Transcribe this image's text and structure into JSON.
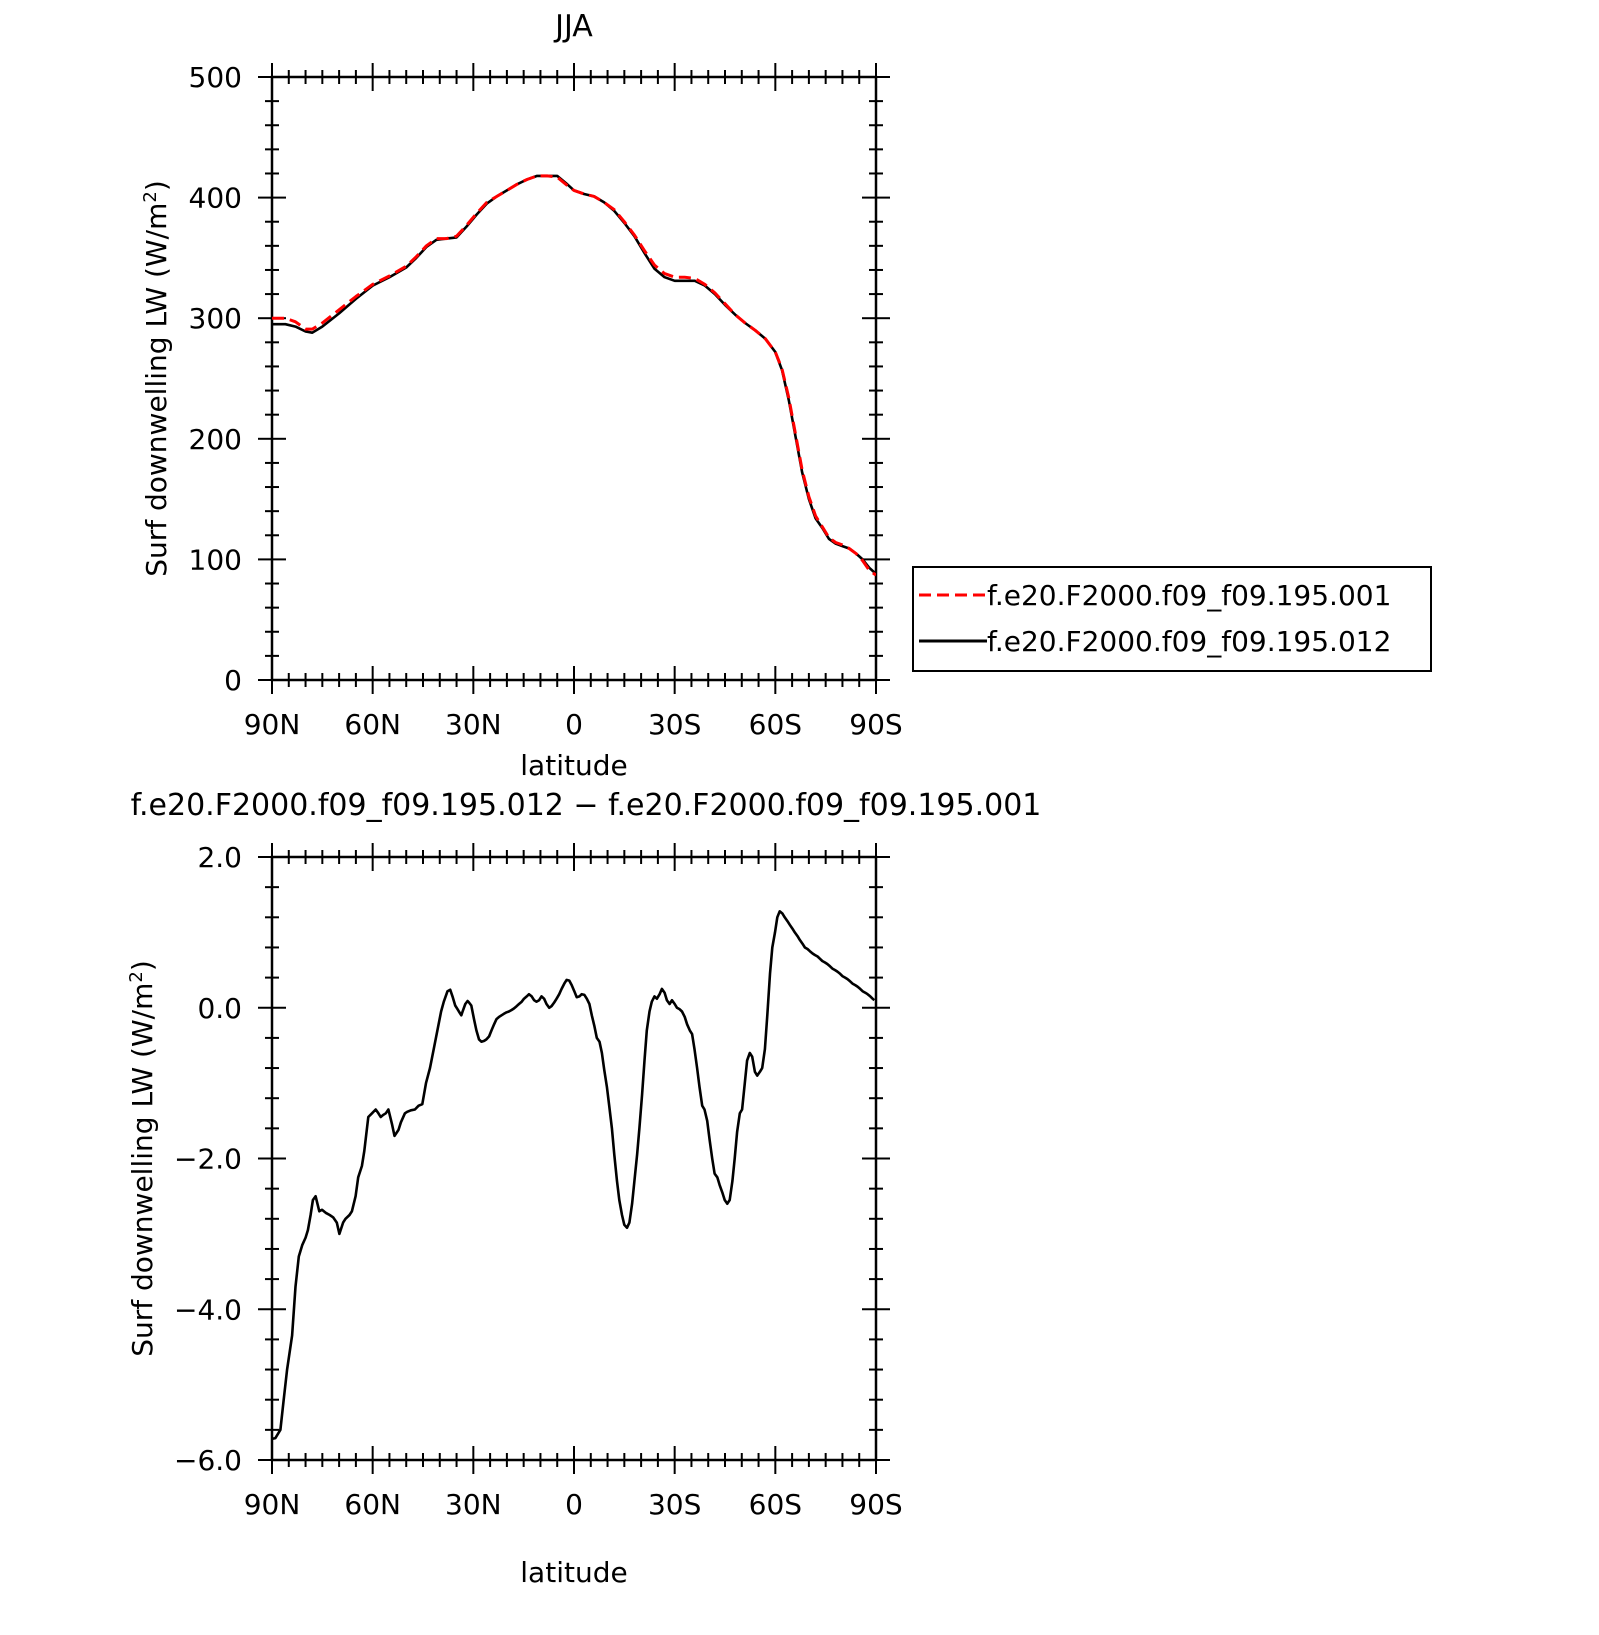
{
  "chart_data": [
    {
      "type": "line",
      "title": "JJA",
      "xlabel": "latitude",
      "ylabel": "Surf downwelling LW (W/m",
      "ylabel_sup": "2",
      "ylabel_close": ")",
      "xlim": [
        90,
        -90
      ],
      "ylim": [
        0,
        500
      ],
      "xticks": [
        {
          "value": 90,
          "label": "90N"
        },
        {
          "value": 60,
          "label": "60N"
        },
        {
          "value": 30,
          "label": "30N"
        },
        {
          "value": 0,
          "label": "0"
        },
        {
          "value": -30,
          "label": "30S"
        },
        {
          "value": -60,
          "label": "60S"
        },
        {
          "value": -90,
          "label": "90S"
        }
      ],
      "yticks": [
        {
          "value": 0,
          "label": "0"
        },
        {
          "value": 100,
          "label": "100"
        },
        {
          "value": 200,
          "label": "200"
        },
        {
          "value": 300,
          "label": "300"
        },
        {
          "value": 400,
          "label": "400"
        },
        {
          "value": 500,
          "label": "500"
        }
      ],
      "grid": false,
      "legend_position": "right",
      "series": [
        {
          "name": "f.e20.F2000.f09_f09.195.001",
          "color": "#ff0000",
          "dash": "dashed",
          "x": [
            90,
            86,
            83,
            80,
            78,
            75,
            70,
            65,
            60,
            55,
            50,
            47,
            44,
            41,
            38,
            35,
            32,
            29,
            26,
            23,
            20,
            17,
            14,
            11,
            8,
            5,
            2,
            0,
            -3,
            -6,
            -9,
            -12,
            -15,
            -18,
            -21,
            -24,
            -27,
            -30,
            -33,
            -36,
            -39,
            -42,
            -45,
            -48,
            -51,
            -54,
            -57,
            -60,
            -62,
            -64,
            -66,
            -68,
            -70,
            -72,
            -74,
            -76,
            -78,
            -80,
            -82,
            -84,
            -86,
            -88,
            -90
          ],
          "y": [
            300,
            300,
            297,
            291,
            291,
            296,
            307,
            318,
            328,
            335,
            343,
            351,
            360,
            366,
            366,
            368,
            377,
            387,
            396,
            401,
            406,
            411,
            415,
            418,
            418,
            417,
            410,
            406,
            403,
            401,
            396,
            390,
            380,
            369,
            356,
            344,
            337,
            334,
            334,
            333,
            328,
            321,
            312,
            303,
            296,
            290,
            283,
            272,
            258,
            234,
            204,
            174,
            152,
            136,
            127,
            118,
            114,
            112,
            109,
            105,
            99,
            91,
            87
          ]
        },
        {
          "name": "f.e20.F2000.f09_f09.195.012",
          "color": "#000000",
          "dash": "solid",
          "x": [
            90,
            86,
            83,
            80,
            78,
            75,
            70,
            65,
            60,
            55,
            50,
            47,
            44,
            41,
            38,
            35,
            32,
            29,
            26,
            23,
            20,
            17,
            14,
            11,
            8,
            5,
            2,
            0,
            -3,
            -6,
            -9,
            -12,
            -15,
            -18,
            -21,
            -24,
            -27,
            -30,
            -33,
            -36,
            -39,
            -42,
            -45,
            -48,
            -51,
            -54,
            -57,
            -60,
            -62,
            -64,
            -66,
            -68,
            -70,
            -72,
            -74,
            -76,
            -78,
            -80,
            -82,
            -84,
            -86,
            -88,
            -90
          ],
          "y": [
            295,
            295,
            293,
            289,
            288,
            293,
            304,
            316,
            327,
            334,
            342,
            350,
            359,
            365,
            366,
            367,
            376,
            386,
            395,
            401,
            406,
            411,
            415,
            418,
            418,
            418,
            411,
            406,
            403,
            401,
            396,
            389,
            379,
            368,
            354,
            341,
            334,
            331,
            331,
            331,
            327,
            320,
            311,
            303,
            296,
            290,
            283,
            272,
            257,
            232,
            202,
            172,
            150,
            134,
            126,
            117,
            113,
            111,
            109,
            105,
            100,
            93,
            88
          ]
        }
      ]
    },
    {
      "type": "line",
      "title": "f.e20.F2000.f09_f09.195.012 − f.e20.F2000.f09_f09.195.001",
      "xlabel": "latitude",
      "ylabel": "Surf downwelling LW (W/m",
      "ylabel_sup": "2",
      "ylabel_close": ")",
      "xlim": [
        90,
        -90
      ],
      "ylim": [
        -6.0,
        2.0
      ],
      "xticks": [
        {
          "value": 90,
          "label": "90N"
        },
        {
          "value": 60,
          "label": "60N"
        },
        {
          "value": 30,
          "label": "30N"
        },
        {
          "value": 0,
          "label": "0"
        },
        {
          "value": -30,
          "label": "30S"
        },
        {
          "value": -60,
          "label": "60S"
        },
        {
          "value": -90,
          "label": "90S"
        }
      ],
      "yticks": [
        {
          "value": -6.0,
          "label": "−6.0"
        },
        {
          "value": -4.0,
          "label": "−4.0"
        },
        {
          "value": -2.0,
          "label": "−2.0"
        },
        {
          "value": 0.0,
          "label": "0.0"
        },
        {
          "value": 2.0,
          "label": "2.0"
        }
      ],
      "grid": false,
      "series": [
        {
          "color": "#000000",
          "dash": "solid",
          "x": [
            90,
            89,
            87.5,
            86.5,
            85.5,
            84,
            83,
            82,
            81,
            80,
            79.3,
            78.5,
            77.8,
            77,
            75.9,
            75.1,
            74,
            72.8,
            71.8,
            70.7,
            69.9,
            68.8,
            68.1,
            66.9,
            66.2,
            65.1,
            64.3,
            63.2,
            62.5,
            61.3,
            60.2,
            59.1,
            58.3,
            57.6,
            56.8,
            56.1,
            55.3,
            54.2,
            53.5,
            52.3,
            51.6,
            50.4,
            49.7,
            48.6,
            47.4,
            46.3,
            45.2,
            44.1,
            42.9,
            41.8,
            40.7,
            39.6,
            38.8,
            37.7,
            36.9,
            36.2,
            35.4,
            34.7,
            34.3,
            33.6,
            33.2,
            32.4,
            31.7,
            31.3,
            30.6,
            29.8,
            29.1,
            28.3,
            27.6,
            26.8,
            26.1,
            25.3,
            24.6,
            23.8,
            23.1,
            22.3,
            21.6,
            20.9,
            20.1,
            19.4,
            18.6,
            17.9,
            17.1,
            16.4,
            15.6,
            14.9,
            14.1,
            13.4,
            12.6,
            11.9,
            11.2,
            10.4,
            9.7,
            8.9,
            8.2,
            7.4,
            6.7,
            5.9,
            5.2,
            4.4,
            3.7,
            2.9,
            2.2,
            1.4,
            0.7,
            -0.1,
            -0.8,
            -1.6,
            -2.3,
            -3.1,
            -3.8,
            -4.6,
            -5.3,
            -6.1,
            -6.8,
            -7.6,
            -8.3,
            -9.0,
            -9.8,
            -10.5,
            -11.3,
            -12.0,
            -12.8,
            -13.5,
            -14.3,
            -15.0,
            -15.8,
            -16.5,
            -17.3,
            -18.0,
            -18.8,
            -19.5,
            -20.3,
            -21.0,
            -21.7,
            -22.5,
            -23.2,
            -24.0,
            -24.7,
            -25.5,
            -26.2,
            -27.0,
            -27.7,
            -28.5,
            -29.2,
            -30.0,
            -30.7,
            -31.5,
            -32.2,
            -33.0,
            -33.7,
            -34.5,
            -35.2,
            -35.9,
            -36.7,
            -37.4,
            -38.2,
            -38.9,
            -39.7,
            -40.4,
            -41.2,
            -41.9,
            -42.7,
            -43.4,
            -44.2,
            -44.9,
            -45.7,
            -46.4,
            -47.2,
            -47.9,
            -48.6,
            -49.4,
            -50.1,
            -50.9,
            -51.6,
            -52.4,
            -53.1,
            -53.9,
            -54.6,
            -55.4,
            -56.1,
            -56.9,
            -57.6,
            -58.4,
            -59.1,
            -59.9,
            -60.6,
            -61.3,
            -62.1,
            -62.8,
            -63.6,
            -64.3,
            -65.1,
            -65.8,
            -66.6,
            -67.3,
            -68.1,
            -68.8,
            -69.6,
            -70.3,
            -71.1,
            -71.8,
            -72.6,
            -73.3,
            -74.0,
            -74.8,
            -75.5,
            -76.3,
            -77.0,
            -77.8,
            -78.5,
            -79.3,
            -80.0,
            -80.8,
            -81.5,
            -82.3,
            -83.0,
            -83.8,
            -84.5,
            -85.3,
            -86.0,
            -86.8,
            -87.5,
            -88.3,
            -89.0,
            -89.5
          ],
          "y": [
            -5.72,
            -5.71,
            -5.6,
            -5.2,
            -4.8,
            -4.35,
            -3.7,
            -3.3,
            -3.15,
            -3.05,
            -2.95,
            -2.75,
            -2.55,
            -2.5,
            -2.7,
            -2.68,
            -2.72,
            -2.75,
            -2.78,
            -2.85,
            -3.0,
            -2.85,
            -2.8,
            -2.75,
            -2.7,
            -2.5,
            -2.25,
            -2.1,
            -1.9,
            -1.45,
            -1.4,
            -1.35,
            -1.4,
            -1.45,
            -1.42,
            -1.4,
            -1.35,
            -1.55,
            -1.7,
            -1.62,
            -1.52,
            -1.4,
            -1.38,
            -1.36,
            -1.35,
            -1.3,
            -1.28,
            -1.0,
            -0.8,
            -0.55,
            -0.3,
            -0.05,
            0.08,
            0.22,
            0.24,
            0.15,
            0.03,
            -0.02,
            -0.05,
            -0.1,
            -0.05,
            0.05,
            0.09,
            0.07,
            0.03,
            -0.15,
            -0.3,
            -0.42,
            -0.45,
            -0.44,
            -0.42,
            -0.38,
            -0.3,
            -0.22,
            -0.15,
            -0.12,
            -0.1,
            -0.08,
            -0.06,
            -0.05,
            -0.03,
            -0.01,
            0.02,
            0.05,
            0.08,
            0.12,
            0.15,
            0.18,
            0.15,
            0.1,
            0.08,
            0.1,
            0.15,
            0.12,
            0.05,
            0.0,
            0.02,
            0.07,
            0.12,
            0.18,
            0.25,
            0.32,
            0.37,
            0.36,
            0.3,
            0.22,
            0.14,
            0.15,
            0.18,
            0.17,
            0.12,
            0.05,
            -0.1,
            -0.25,
            -0.4,
            -0.45,
            -0.6,
            -0.82,
            -1.05,
            -1.3,
            -1.6,
            -1.95,
            -2.3,
            -2.55,
            -2.75,
            -2.88,
            -2.92,
            -2.85,
            -2.6,
            -2.3,
            -1.95,
            -1.6,
            -1.15,
            -0.7,
            -0.3,
            -0.05,
            0.08,
            0.15,
            0.12,
            0.18,
            0.25,
            0.2,
            0.1,
            0.05,
            0.1,
            0.05,
            0.0,
            -0.02,
            -0.05,
            -0.12,
            -0.22,
            -0.3,
            -0.35,
            -0.55,
            -0.8,
            -1.05,
            -1.3,
            -1.35,
            -1.5,
            -1.75,
            -2.0,
            -2.2,
            -2.25,
            -2.35,
            -2.45,
            -2.55,
            -2.6,
            -2.55,
            -2.3,
            -2.0,
            -1.65,
            -1.4,
            -1.35,
            -1.0,
            -0.7,
            -0.6,
            -0.65,
            -0.85,
            -0.9,
            -0.85,
            -0.8,
            -0.55,
            -0.1,
            0.45,
            0.8,
            1.0,
            1.2,
            1.28,
            1.25,
            1.2,
            1.15,
            1.1,
            1.05,
            1.0,
            0.95,
            0.9,
            0.85,
            0.8,
            0.78,
            0.75,
            0.72,
            0.7,
            0.68,
            0.65,
            0.62,
            0.6,
            0.58,
            0.55,
            0.52,
            0.5,
            0.48,
            0.45,
            0.42,
            0.4,
            0.38,
            0.35,
            0.32,
            0.3,
            0.28,
            0.25,
            0.22,
            0.2,
            0.18,
            0.15,
            0.12,
            0.1
          ]
        }
      ]
    }
  ]
}
